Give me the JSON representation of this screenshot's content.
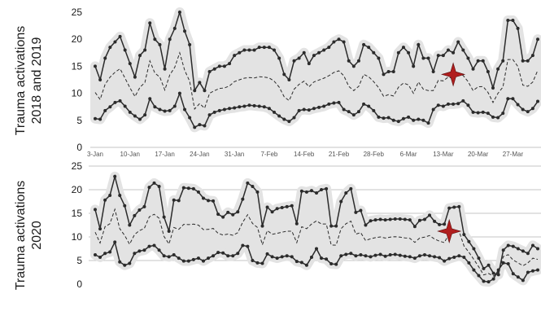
{
  "colors": {
    "band": "#e3e3e3",
    "line": "#2b2b2b",
    "grid": "#c4c4c4",
    "marker": "#b01e1e"
  },
  "chart_data": [
    {
      "type": "line",
      "ylabel": [
        "Trauma activations",
        "2018 and 2019"
      ],
      "ylim": [
        0,
        25
      ],
      "yticks": [
        0,
        5,
        10,
        15,
        20,
        25
      ],
      "xticks": [
        {
          "label": "3-Jan",
          "x": 0
        },
        {
          "label": "10-Jan",
          "x": 7
        },
        {
          "label": "17-Jan",
          "x": 14
        },
        {
          "label": "24-Jan",
          "x": 21
        },
        {
          "label": "31-Jan",
          "x": 28
        },
        {
          "label": "7-Feb",
          "x": 35
        },
        {
          "label": "14-Feb",
          "x": 42
        },
        {
          "label": "21-Feb",
          "x": 49
        },
        {
          "label": "28-Feb",
          "x": 56
        },
        {
          "label": "6-Mar",
          "x": 63
        },
        {
          "label": "13-Mar",
          "x": 70
        },
        {
          "label": "20-Mar",
          "x": 77
        },
        {
          "label": "27-Mar",
          "x": 84
        }
      ],
      "grid": false,
      "star_marker": {
        "x": 72,
        "y": 13.5
      },
      "series": [
        {
          "values": [
            15,
            12.5,
            16.5,
            18.5,
            19.5,
            20.5,
            18,
            15.5,
            13,
            17,
            18,
            23,
            20,
            19,
            14.5,
            20,
            22,
            25,
            21.5,
            19,
            10.5,
            12,
            10.5,
            14,
            14.5,
            15,
            15,
            15.5,
            17,
            17.5,
            18,
            18,
            18,
            18.5,
            18.5,
            18.5,
            18,
            16.5,
            13.5,
            12.5,
            16,
            16.5,
            17.5,
            15.5,
            17,
            17.5,
            18,
            18.5,
            19.5,
            20,
            19.5,
            16,
            15,
            16,
            19,
            18.5,
            17.5,
            16.5,
            13.5,
            14,
            14,
            17.5,
            18.5,
            17.5,
            15,
            19,
            16.5,
            16.5,
            14,
            17,
            17,
            18,
            17.5,
            19.5,
            18,
            16.5,
            14.5,
            16,
            16,
            14,
            11,
            14.5,
            16,
            23.5,
            23.5,
            22,
            16,
            16,
            17,
            20
          ]
        },
        {
          "values": [
            5.3,
            5.2,
            6.8,
            7.5,
            8.3,
            8.6,
            7.6,
            6.5,
            5.8,
            5.2,
            6,
            9,
            7.5,
            7,
            6.7,
            6.8,
            7.6,
            10,
            7,
            5.5,
            3.7,
            4.2,
            4,
            6,
            6.5,
            6.8,
            7,
            7.2,
            7.3,
            7.5,
            7.6,
            7.8,
            7.7,
            7.6,
            7.5,
            7.2,
            6.5,
            5.8,
            5.2,
            4.8,
            5.5,
            6.8,
            7,
            6.9,
            7.2,
            7.4,
            7.6,
            8,
            8.2,
            8.3,
            7,
            6.6,
            6,
            6.6,
            8,
            7.6,
            6.8,
            5.6,
            5.4,
            5.5,
            5,
            4.8,
            5.3,
            5.6,
            5,
            5.2,
            5,
            4.5,
            7,
            7.8,
            7.6,
            8,
            8,
            8.1,
            8.6,
            7.8,
            6.5,
            6.4,
            6.5,
            6.3,
            5.6,
            5.5,
            6.3,
            9,
            9,
            7.9,
            7,
            6.6,
            7.2,
            8.5
          ]
        }
      ]
    },
    {
      "type": "line",
      "ylabel": [
        "Trauma activations",
        "2020"
      ],
      "ylim": [
        0,
        25
      ],
      "yticks": [
        0,
        5,
        10,
        15,
        20,
        25
      ],
      "grid": true,
      "star_marker": {
        "x": 72,
        "y": 11.2
      },
      "series": [
        {
          "values": [
            15.8,
            11.7,
            17.8,
            18.8,
            22.8,
            18.8,
            16.6,
            12.5,
            14.5,
            15.7,
            16.4,
            20.5,
            21.4,
            20.7,
            14.2,
            11.2,
            17.8,
            17.7,
            20.4,
            20.3,
            20.2,
            19.5,
            18.2,
            17.7,
            17.6,
            14.8,
            14.2,
            15.2,
            14.7,
            15.3,
            18,
            21.4,
            20.7,
            19.5,
            12.3,
            16.3,
            15.3,
            16,
            16.2,
            16.4,
            16.6,
            12.8,
            19.7,
            19.5,
            19.8,
            19.3,
            20,
            20.2,
            12.3,
            12.3,
            17.5,
            19.3,
            20.2,
            15.2,
            15.6,
            12.5,
            13.4,
            13.6,
            13.7,
            13.6,
            13.7,
            13.8,
            13.8,
            13.7,
            13.6,
            12.2,
            13.5,
            13.7,
            14.6,
            13.3,
            12.6,
            12.7,
            16.1,
            16.3,
            16.4,
            10.5,
            9,
            7.5,
            5.5,
            3.3,
            4,
            2.3,
            2,
            7.2,
            8.2,
            8,
            7.5,
            7,
            6.5,
            8.2,
            7.5
          ]
        },
        {
          "values": [
            6.2,
            5.7,
            6.5,
            6.8,
            8.9,
            4.7,
            4,
            4.4,
            6.5,
            7,
            7.2,
            8,
            8.2,
            7.2,
            6,
            5.8,
            6.2,
            5.5,
            4.9,
            4.9,
            5.2,
            5.5,
            4.9,
            5.5,
            6,
            6.7,
            6.6,
            6,
            6,
            6.5,
            8.2,
            8,
            5,
            4.5,
            4.4,
            6.4,
            5.8,
            5.5,
            5.8,
            6,
            5.8,
            4.8,
            4.6,
            4,
            5.7,
            7.5,
            5.5,
            5.3,
            4.3,
            4.2,
            6,
            6.3,
            6.5,
            6,
            6.2,
            6,
            5.8,
            6.1,
            6.3,
            5.9,
            6.2,
            6.3,
            6.1,
            5.9,
            5.8,
            5.5,
            6,
            6.2,
            6,
            5.8,
            5.6,
            4.9,
            5.4,
            5.7,
            6,
            5.7,
            4.5,
            3,
            1.8,
            0.6,
            0.5,
            1.1,
            3,
            4.5,
            4.3,
            2.2,
            1.5,
            0.8,
            2.5,
            2.8,
            3
          ]
        }
      ]
    }
  ]
}
